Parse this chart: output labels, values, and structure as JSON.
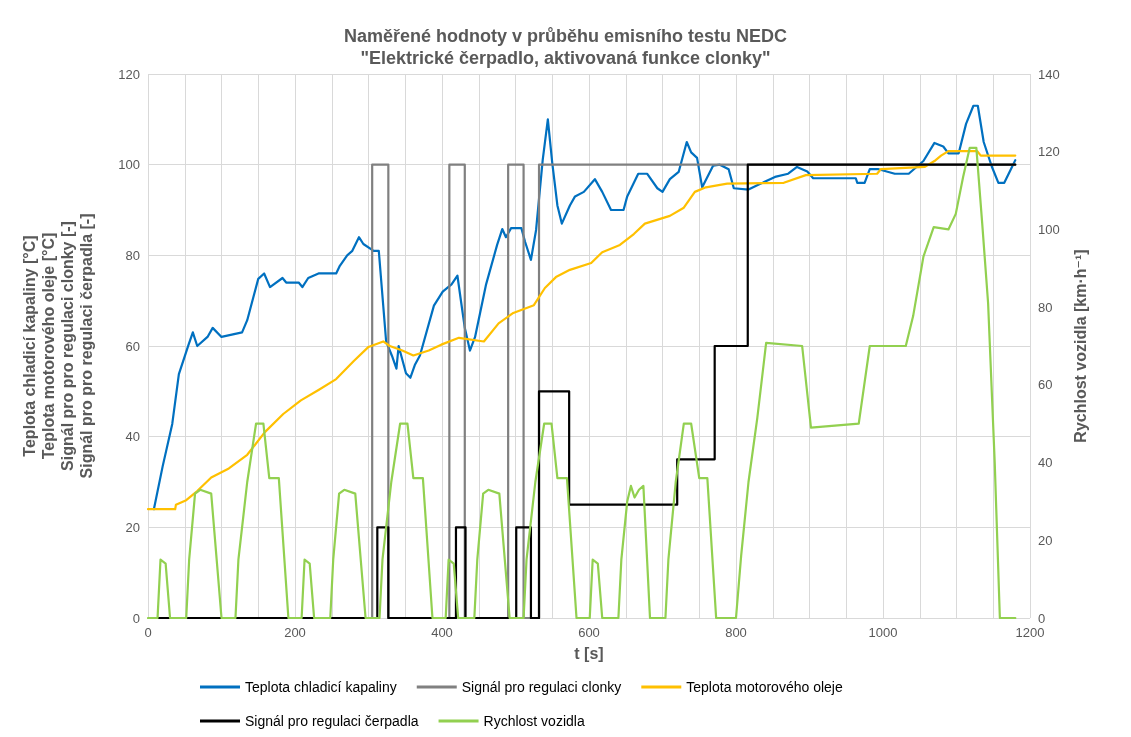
{
  "chart_data": {
    "type": "line",
    "title": "Naměřené hodnoty v průběhu emisního testu NEDC\n\"Elektrické čerpadlo, aktivovaná funkce clonky\"",
    "xlabel": "t [s]",
    "ylabel": "Teplota chladicí kapaliny [°C]\nTeplota motorového oleje [°C]\nSignál pro pro regulaci clonky [-]\nSignál pro pro regulaci čerpadla [-]",
    "y2label": "Rychlost vozidla [km·h⁻¹]",
    "xlim": [
      0,
      1200
    ],
    "xticks": [
      0,
      {
        "value": 50,
        "label": null
      },
      {
        "value": 100,
        "label": null
      },
      {
        "value": 150,
        "label": null
      },
      200,
      {
        "value": 250,
        "label": null
      },
      {
        "value": 300,
        "label": null
      },
      {
        "value": 350,
        "label": null
      },
      400,
      {
        "value": 450,
        "label": null
      },
      {
        "value": 500,
        "label": null
      },
      {
        "value": 550,
        "label": null
      },
      600,
      {
        "value": 650,
        "label": null
      },
      {
        "value": 700,
        "label": null
      },
      {
        "value": 750,
        "label": null
      },
      800,
      {
        "value": 850,
        "label": null
      },
      {
        "value": 900,
        "label": null
      },
      {
        "value": 950,
        "label": null
      },
      1000,
      {
        "value": 1050,
        "label": null
      },
      {
        "value": 1100,
        "label": null
      },
      {
        "value": 1150,
        "label": null
      },
      1200
    ],
    "ylim": [
      0,
      120
    ],
    "yticks": [
      0,
      20,
      40,
      60,
      80,
      100,
      120
    ],
    "y2lim": [
      0,
      140
    ],
    "y2ticks": [
      0,
      20,
      40,
      60,
      80,
      100,
      120,
      140
    ],
    "grid": true,
    "legend": "bottom",
    "marker": "none",
    "line_style": "solid",
    "series": [
      {
        "name": "Teplota chladicí kapaliny",
        "color": "#0070c0",
        "x": [
          8,
          20,
          33,
          42,
          55,
          61,
          67,
          81,
          88,
          100,
          128,
          135,
          150,
          158,
          166,
          183,
          188,
          205,
          210,
          218,
          232,
          256,
          261,
          271,
          278,
          287,
          293,
          307,
          314,
          324,
          332,
          338,
          341,
          351,
          357,
          363,
          370,
          389,
          401,
          413,
          421,
          426,
          431,
          438,
          445,
          460,
          475,
          482,
          487,
          494,
          508,
          513,
          521,
          528,
          537,
          544,
          550,
          557,
          563,
          574,
          581,
          593,
          608,
          618,
          630,
          647,
          652,
          667,
          679,
          693,
          700,
          710,
          722,
          733,
          739,
          747,
          754,
          769,
          778,
          790,
          797,
          817,
          831,
          853,
          871,
          883,
          897,
          905,
          963,
          965,
          975,
          982,
          994,
          1016,
          1035,
          1055,
          1070,
          1082,
          1089,
          1103,
          1113,
          1123,
          1129,
          1137,
          1148,
          1157,
          1165,
          1174,
          1180
        ],
        "values": [
          24,
          33.5,
          42.8,
          53.8,
          60.2,
          63,
          60,
          62,
          64,
          62,
          63,
          65.7,
          74.8,
          76,
          73,
          75,
          74,
          74,
          73,
          75,
          76,
          76,
          77.7,
          80,
          81,
          84,
          82.5,
          81,
          81,
          61,
          57.8,
          55,
          60,
          54,
          53,
          55.8,
          57.9,
          68.9,
          72,
          73.6,
          75.5,
          69.7,
          64,
          59,
          62,
          73.6,
          82.3,
          85.8,
          84,
          86,
          86,
          83,
          79,
          85.6,
          101,
          110,
          100.4,
          91,
          87,
          91,
          93,
          94,
          96.8,
          94,
          90,
          90,
          93,
          98,
          98,
          94.8,
          94,
          96.8,
          98.4,
          105,
          102.7,
          101.5,
          95,
          99.8,
          100,
          99,
          94.8,
          94.5,
          95.6,
          97.3,
          98,
          99.5,
          98.5,
          97,
          97,
          96,
          96,
          99,
          99,
          98,
          98,
          100.8,
          104.8,
          104,
          102.5,
          102.5,
          109,
          113,
          113,
          105,
          99.6,
          96,
          96,
          99,
          101
        ]
      },
      {
        "name": "Signál pro regulaci clonky",
        "color": "#808080",
        "x": [
          8,
          305,
          305,
          327,
          327,
          410,
          410,
          431,
          431,
          490,
          490,
          511,
          511,
          532,
          532,
          1180
        ],
        "values": [
          0,
          0,
          100,
          100,
          0,
          0,
          100,
          100,
          0,
          0,
          100,
          100,
          0,
          0,
          100,
          100
        ]
      },
      {
        "name": "Teplota motorového oleje",
        "color": "#ffc000",
        "x": [
          0,
          37,
          38,
          52,
          67,
          86,
          110,
          135,
          159,
          184,
          208,
          232,
          256,
          280,
          300,
          320,
          329,
          346,
          361,
          382,
          399,
          423,
          457,
          477,
          497,
          525,
          540,
          555,
          574,
          603,
          618,
          642,
          661,
          676,
          710,
          729,
          744,
          759,
          788,
          865,
          895,
          992,
          997,
          1057,
          1070,
          1079,
          1089,
          1128,
          1133,
          1180
        ],
        "values": [
          24,
          24,
          25,
          26,
          28,
          31,
          33,
          36,
          41,
          45,
          48,
          50.3,
          52.7,
          56.7,
          59.8,
          61,
          60,
          59,
          57.9,
          59,
          60.3,
          61.8,
          61,
          65,
          67.3,
          69,
          72.8,
          75.2,
          76.8,
          78.3,
          80.7,
          82.3,
          84.7,
          87,
          88.7,
          90.5,
          94,
          95,
          95.8,
          96,
          97.7,
          98,
          99,
          99.5,
          100.8,
          102,
          103,
          103,
          102,
          102
        ]
      },
      {
        "name": "Signál pro regulaci čerpadla",
        "color": "#000000",
        "x": [
          8,
          312,
          312,
          327,
          327,
          419,
          419,
          432,
          432,
          501,
          501,
          521,
          521,
          532,
          532,
          573,
          573,
          720,
          720,
          771,
          771,
          816,
          816,
          1180
        ],
        "values": [
          0,
          0,
          20,
          20,
          0,
          0,
          20,
          20,
          0,
          0,
          20,
          20,
          0,
          0,
          50,
          50,
          25,
          25,
          35,
          35,
          60,
          60,
          100,
          100
        ]
      },
      {
        "name": "Rychlost vozidla",
        "color": "#92d050",
        "axis": "y2",
        "x": [
          0,
          13,
          17,
          24,
          30,
          52,
          56,
          64,
          71,
          86,
          100,
          119,
          123,
          135,
          147,
          157,
          165,
          178,
          191,
          209,
          213,
          220,
          226,
          248,
          252,
          260,
          267,
          282,
          296,
          315,
          319,
          331,
          343,
          353,
          361,
          374,
          387,
          405,
          409,
          416,
          422,
          444,
          448,
          456,
          463,
          478,
          492,
          511,
          515,
          527,
          539,
          549,
          557,
          570,
          583,
          601,
          605,
          612,
          618,
          640,
          644,
          652,
          657,
          662,
          668,
          674,
          683,
          704,
          708,
          718,
          729,
          739,
          750,
          761,
          773,
          800,
          807,
          817,
          829,
          841,
          890,
          902,
          967,
          982,
          1031,
          1041,
          1055,
          1069,
          1089,
          1099,
          1109,
          1118,
          1127,
          1135,
          1143,
          1152,
          1159,
          1180
        ],
        "values": [
          0,
          0,
          15,
          14,
          0,
          0,
          15,
          32,
          33,
          32,
          0,
          0,
          15,
          35,
          50,
          50,
          36,
          36,
          0,
          0,
          15,
          14,
          0,
          0,
          15,
          32,
          33,
          32,
          0,
          0,
          15,
          35,
          50,
          50,
          36,
          36,
          0,
          0,
          15,
          14,
          0,
          0,
          15,
          32,
          33,
          32,
          0,
          0,
          15,
          35,
          50,
          50,
          36,
          36,
          0,
          0,
          15,
          14,
          0,
          0,
          15,
          30,
          34,
          31,
          33,
          34,
          0,
          0,
          15,
          35,
          50,
          50,
          36,
          36,
          0,
          0,
          16,
          35,
          51.5,
          70.8,
          70,
          49,
          50,
          70,
          70,
          77.7,
          93,
          100.6,
          100,
          104,
          113.5,
          121,
          121,
          101.5,
          81,
          40,
          0,
          0
        ]
      }
    ]
  }
}
